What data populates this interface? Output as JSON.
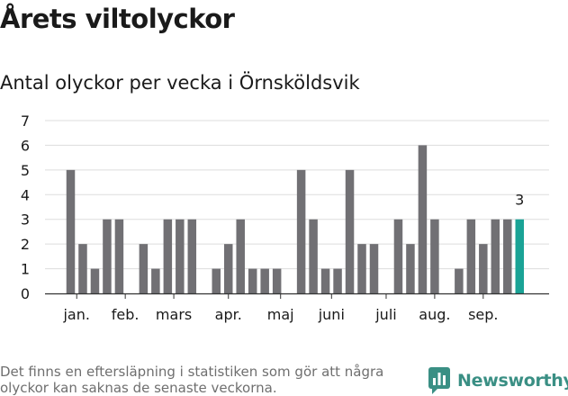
{
  "title": "Årets viltolyckor",
  "subtitle": "Antal olyckor per vecka i Örnsköldsvik",
  "footnote": "Det finns en eftersläpning i statistiken som gör att några olyckor kan saknas de senaste veckorna.",
  "brand": {
    "name": "Newsworthy",
    "logo_icon": "bar-chart-bubble-icon"
  },
  "colors": {
    "bar": "#717074",
    "highlight": "#1aa396",
    "grid": "#dddddd",
    "axis": "#333333",
    "text": "#1a1a1a"
  },
  "chart_data": {
    "type": "bar",
    "title": "Antal olyckor per vecka i Örnsköldsvik",
    "xlabel": "",
    "ylabel": "",
    "ylim": [
      0,
      7
    ],
    "yticks": [
      "0",
      "1",
      "2",
      "3",
      "4",
      "5",
      "6",
      "7"
    ],
    "grid": true,
    "weeks": [
      1,
      2,
      3,
      4,
      5,
      6,
      7,
      8,
      9,
      10,
      11,
      12,
      13,
      14,
      15,
      16,
      17,
      18,
      19,
      20,
      21,
      22,
      23,
      24,
      25,
      26,
      27,
      28,
      29,
      30,
      31,
      32,
      33,
      34,
      35,
      36,
      37,
      38,
      39,
      40
    ],
    "values": [
      0,
      5,
      2,
      1,
      3,
      3,
      0,
      2,
      1,
      3,
      3,
      3,
      0,
      1,
      2,
      3,
      1,
      1,
      1,
      0,
      5,
      3,
      1,
      1,
      5,
      2,
      2,
      0,
      3,
      2,
      6,
      3,
      0,
      1,
      3,
      2,
      3,
      3,
      3,
      0
    ],
    "highlight_week": 39,
    "highlight_label": "3",
    "month_labels": [
      {
        "label": "jan.",
        "week": 2.5
      },
      {
        "label": "feb.",
        "week": 6.5
      },
      {
        "label": "mars",
        "week": 10.5
      },
      {
        "label": "apr.",
        "week": 15
      },
      {
        "label": "maj",
        "week": 19.3
      },
      {
        "label": "juni",
        "week": 23.5
      },
      {
        "label": "juli",
        "week": 28
      },
      {
        "label": "aug.",
        "week": 32
      },
      {
        "label": "sep.",
        "week": 36
      }
    ]
  }
}
